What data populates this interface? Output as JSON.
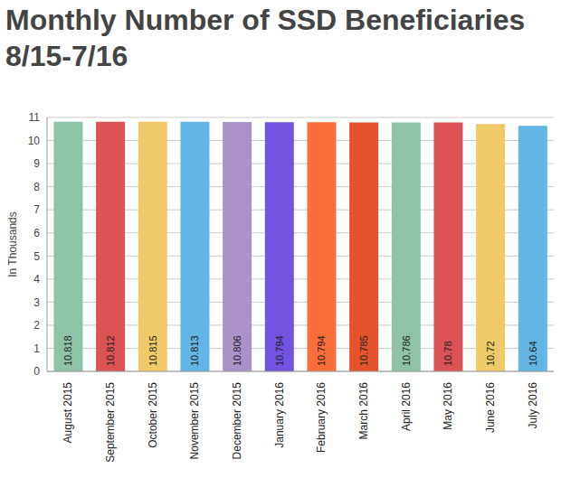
{
  "chart_data": {
    "type": "bar",
    "title": "Monthly Number of SSD Beneficiaries\n8/15-7/16",
    "y_label": "In Thousands",
    "categories": [
      "August 2015",
      "September 2015",
      "October 2015",
      "November 2015",
      "December 2015",
      "January 2016",
      "February 2016",
      "March 2016",
      "April 2016",
      "May 2016",
      "June 2016",
      "July 2016"
    ],
    "values": [
      10.818,
      10.812,
      10.815,
      10.813,
      10.806,
      10.794,
      10.794,
      10.785,
      10.786,
      10.78,
      10.72,
      10.64
    ],
    "colors": [
      "#8ec3a7",
      "#dc5356",
      "#f0ca68",
      "#62b5e5",
      "#ab92c8",
      "#7153dd",
      "#fb6d3a",
      "#e5532e",
      "#8ec3a7",
      "#dc5356",
      "#f0ca68",
      "#62b5e5"
    ],
    "ylim": [
      0,
      11
    ],
    "yticks": [
      0,
      1,
      2,
      3,
      4,
      5,
      6,
      7,
      8,
      9,
      10,
      11
    ],
    "grid": true,
    "data_labels": true
  }
}
